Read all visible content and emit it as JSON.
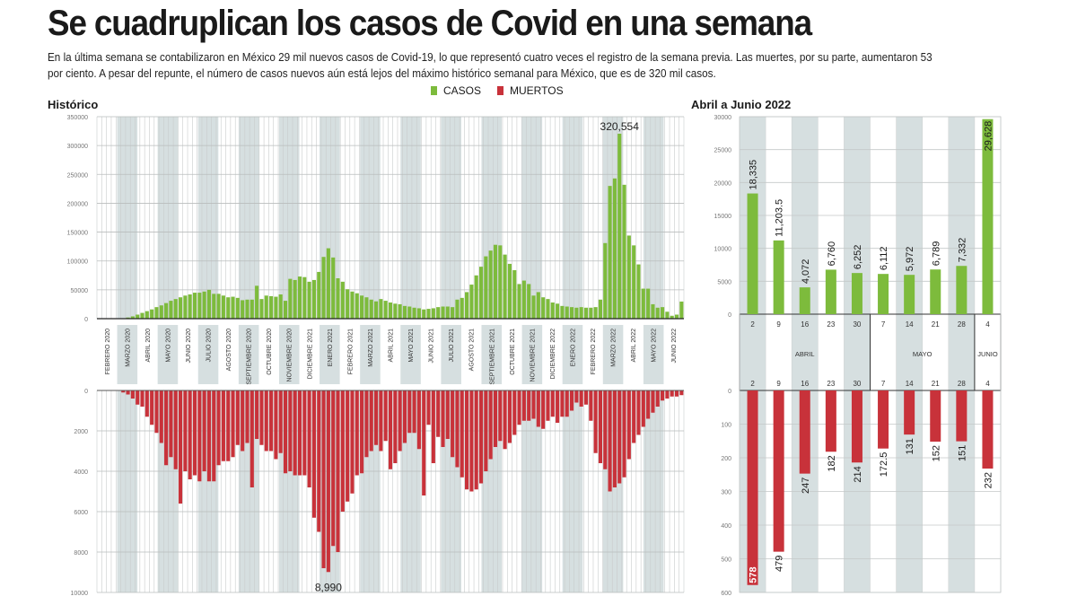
{
  "header": {
    "title": "Se cuadruplican los casos de Covid en una semana",
    "subtitle": "En la última semana se contabilizaron en México 29 mil nuevos casos de Covid-19, lo que representó cuatro veces el registro de la semana previa. Las muertes, por su parte, aumentaron 53 por ciento. A pesar del repunte, el número de casos nuevos aún está lejos del máximo histórico semanal para México, que es de 320 mil casos."
  },
  "legend": {
    "cases_label": "CASOS",
    "deaths_label": "MUERTOS"
  },
  "colors": {
    "cases": "#7dbb3c",
    "deaths": "#c8323a",
    "band": "#d6dfe0",
    "grid": "#b9bdbd"
  },
  "sections": {
    "historic_label": "Histórico",
    "recent_label": "Abril a Junio 2022"
  },
  "chart_data": [
    {
      "type": "bar",
      "name": "historic",
      "title": "Histórico",
      "months": [
        "FEBRERO 2020",
        "MARZO 2020",
        "ABRIL 2020",
        "MAYO 2020",
        "JUNIO 2020",
        "JULIO 2020",
        "AGOSTO 2020",
        "SEPTIEMBRE 2020",
        "OCTUBRE 2020",
        "NOVIEMBRE 2020",
        "DICIEMBRE 2021",
        "ENERO 2021",
        "FEBRERO 2021",
        "MARZO 2021",
        "ABRIL 2021",
        "MAYO 2021",
        "JUNIO 2021",
        "JULIO 2021",
        "AGOSTO 2021",
        "SEPTIEMBRE 2021",
        "OCTUBRE 2021",
        "NOVIEMBRE 2021",
        "DICIEMBRE 2022",
        "ENERO 2022",
        "FEBRERO 2022",
        "MARZO 2022",
        "ABRIL 2022",
        "MAYO 2022",
        "JUNIO 2022"
      ],
      "cases_axis": {
        "ticks": [
          0,
          50000,
          100000,
          150000,
          200000,
          250000,
          300000,
          350000
        ],
        "ylim": [
          0,
          350000
        ]
      },
      "deaths_axis": {
        "ticks": [
          0,
          2000,
          4000,
          6000,
          8000,
          10000
        ],
        "ylim": [
          0,
          10000
        ]
      },
      "cases": [
        0,
        0,
        0,
        0,
        0,
        500,
        2000,
        4000,
        7000,
        10000,
        13000,
        16000,
        20000,
        23000,
        27000,
        31000,
        34000,
        37000,
        40000,
        42000,
        45000,
        45000,
        47000,
        50000,
        43000,
        43000,
        40000,
        37000,
        38000,
        36000,
        32000,
        33000,
        33000,
        57000,
        34000,
        40000,
        39000,
        38000,
        42000,
        31000,
        69000,
        67000,
        73000,
        72000,
        64000,
        67000,
        81000,
        107000,
        122000,
        106000,
        70000,
        64000,
        51000,
        47000,
        44000,
        40000,
        37000,
        33000,
        30000,
        34000,
        31000,
        28000,
        26000,
        25000,
        22000,
        21000,
        19000,
        18000,
        16000,
        17000,
        18000,
        20000,
        21000,
        21000,
        20000,
        33000,
        36000,
        46000,
        59000,
        75000,
        90000,
        108000,
        118000,
        128000,
        127000,
        111000,
        95000,
        84000,
        60000,
        66000,
        60000,
        40000,
        46000,
        37000,
        34000,
        28000,
        26000,
        22000,
        21000,
        20000,
        19000,
        20000,
        19000,
        19000,
        20000,
        33000,
        131000,
        230000,
        243000,
        320554,
        232000,
        144000,
        127000,
        94000,
        52000,
        52000,
        25000,
        19000,
        20000,
        12000,
        5000,
        7000,
        29628
      ],
      "deaths": [
        0,
        0,
        0,
        0,
        0,
        100,
        200,
        400,
        700,
        800,
        1300,
        1700,
        2100,
        2600,
        3700,
        3300,
        3900,
        5600,
        4000,
        4400,
        4200,
        4500,
        4000,
        4500,
        4500,
        3700,
        3500,
        3500,
        3300,
        2700,
        3000,
        2600,
        4800,
        2400,
        2700,
        3000,
        3000,
        3400,
        3100,
        4100,
        4000,
        4200,
        4200,
        4200,
        4800,
        6300,
        7000,
        8800,
        8990,
        7700,
        8000,
        6000,
        5500,
        5100,
        4200,
        4100,
        3300,
        3000,
        2700,
        3000,
        2500,
        3900,
        3600,
        3000,
        2600,
        2100,
        2100,
        2900,
        5200,
        1700,
        3600,
        2300,
        2800,
        2400,
        3300,
        3800,
        4300,
        4900,
        5000,
        4900,
        4600,
        4000,
        3400,
        2800,
        2500,
        2900,
        2600,
        2200,
        1700,
        1500,
        1500,
        1400,
        1800,
        1900,
        1500,
        1300,
        1600,
        1300,
        1300,
        1000,
        600,
        800,
        700,
        1500,
        3100,
        3600,
        3900,
        5000,
        4800,
        4600,
        4300,
        3400,
        2600,
        2200,
        1800,
        1400,
        1100,
        800,
        500,
        400,
        300,
        300,
        232
      ]
    },
    {
      "type": "bar",
      "name": "abril-junio-2022",
      "title": "Abril a Junio 2022",
      "weeks": [
        "2",
        "9",
        "16",
        "23",
        "30",
        "7",
        "14",
        "21",
        "28",
        "4"
      ],
      "month_groups": [
        {
          "label": "ABRIL",
          "count": 5
        },
        {
          "label": "MAYO",
          "count": 4
        },
        {
          "label": "JUNIO",
          "count": 1
        }
      ],
      "cases_axis": {
        "ticks": [
          0,
          5000,
          10000,
          15000,
          20000,
          25000,
          30000
        ],
        "ylim": [
          0,
          30000
        ]
      },
      "deaths_axis": {
        "ticks": [
          0,
          100,
          200,
          300,
          400,
          500,
          600
        ],
        "ylim": [
          0,
          600
        ]
      },
      "cases": [
        18335,
        11203.5,
        4072,
        6760,
        6252,
        6112,
        5972,
        6789,
        7332,
        29628
      ],
      "cases_labels": [
        "18,335",
        "11,203.5",
        "4,072",
        "6,760",
        "6,252",
        "6,112",
        "5,972",
        "6,789",
        "7,332",
        "29,628"
      ],
      "deaths": [
        578,
        479,
        247,
        182,
        214,
        172.5,
        131,
        152,
        151,
        232
      ],
      "deaths_labels": [
        "578",
        "479",
        "247",
        "182",
        "214",
        "172.5",
        "131",
        "152",
        "151",
        "232"
      ]
    }
  ],
  "annotations": {
    "cases_peak": "320,554",
    "deaths_peak": "8,990"
  }
}
